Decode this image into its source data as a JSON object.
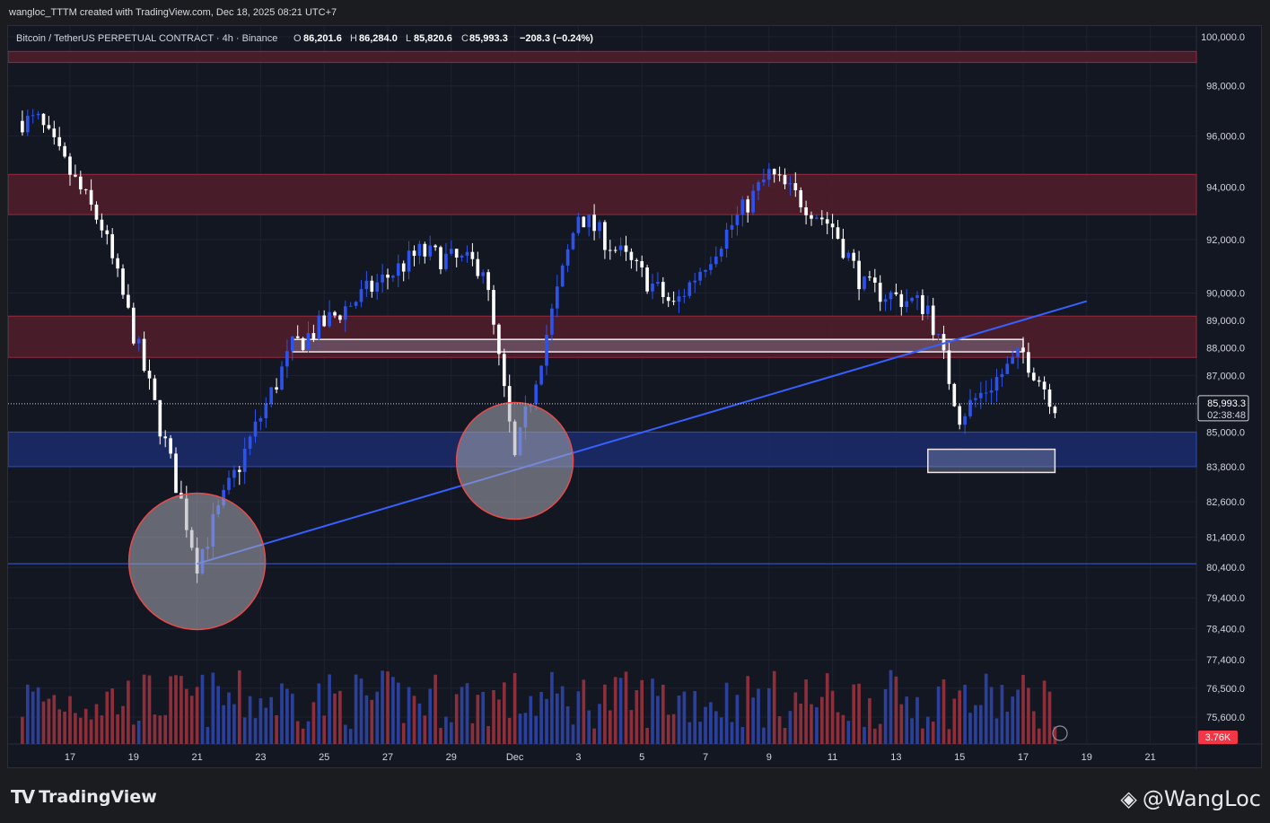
{
  "header": {
    "credit": "wangloc_TTTM created with TradingView.com, Dec 18, 2025 08:21 UTC+7"
  },
  "footer": {
    "brand": "TradingView",
    "author": "@WangLoc"
  },
  "colors": {
    "background": "#131722",
    "up_candle": "#2c52ef",
    "down_candle": "#ffffff",
    "volume_up": "#2b3f9c",
    "volume_down": "#8c2f3a",
    "resistance_zone": "#4d1d2a",
    "support_zone": "#1a2a66",
    "trendline": "#3660ff",
    "circle_stroke": "#e84b4b"
  },
  "chart_data": {
    "type": "candlestick",
    "symbol_label": "Bitcoin / TetherUS PERPETUAL CONTRACT · 4h · Binance",
    "ohlc_readout": {
      "O_label": "O",
      "O": "86,201.6",
      "H_label": "H",
      "H": "86,284.0",
      "L_label": "L",
      "L": "85,820.6",
      "C_label": "C",
      "C": "85,993.3",
      "change": "−208.3 (−0.24%)"
    },
    "price_axis_ticks": [
      "100,000.0",
      "98,000.0",
      "96,000.0",
      "94,000.0",
      "92,000.0",
      "90,000.0",
      "89,000.0",
      "88,000.0",
      "87,000.0",
      "85,000.0",
      "83,800.0",
      "82,600.0",
      "81,400.0",
      "80,400.0",
      "79,400.0",
      "78,400.0",
      "77,400.0",
      "76,500.0",
      "75,600.0"
    ],
    "time_axis_ticks": [
      "17",
      "19",
      "21",
      "23",
      "25",
      "27",
      "29",
      "Dec",
      "3",
      "5",
      "7",
      "9",
      "11",
      "13",
      "15",
      "17",
      "19",
      "21"
    ],
    "last_price": {
      "value": "85,993.3",
      "countdown": "02:38:48"
    },
    "volume_label": "3.76K",
    "scale": "log",
    "ylim": [
      75200,
      101000
    ],
    "zones": [
      {
        "kind": "resistance",
        "from": 98950,
        "to": 99400
      },
      {
        "kind": "resistance",
        "from": 92950,
        "to": 94500
      },
      {
        "kind": "resistance",
        "from": 87650,
        "to": 89150
      },
      {
        "kind": "support",
        "from": 83800,
        "to": 85000
      },
      {
        "kind": "box",
        "from": 87850,
        "to": 88300,
        "x_from": "Nov 24",
        "x_to": "Dec 17"
      },
      {
        "kind": "box",
        "from": 83600,
        "to": 84400,
        "x_from": "Dec 14",
        "x_to": "Dec 18"
      }
    ],
    "horizontal_line": 80520,
    "trendline": {
      "points": [
        [
          "Nov 21",
          80520
        ],
        [
          "Dec 19",
          89700
        ]
      ]
    },
    "circles": [
      {
        "center_date": "Nov 21",
        "center_price": 80600
      },
      {
        "center_date": "Dec 1",
        "center_price": 84000
      }
    ],
    "key_points": [
      {
        "date": "Nov 16",
        "price": 96600
      },
      {
        "date": "Nov 18",
        "price": 92500
      },
      {
        "date": "Nov 21",
        "price": 80600
      },
      {
        "date": "Nov 24",
        "price": 88000
      },
      {
        "date": "Nov 28",
        "price": 91500
      },
      {
        "date": "Nov 30",
        "price": 91000
      },
      {
        "date": "Dec 1",
        "price": 84000
      },
      {
        "date": "Dec 3",
        "price": 93000
      },
      {
        "date": "Dec 6",
        "price": 89500
      },
      {
        "date": "Dec 9",
        "price": 94500
      },
      {
        "date": "Dec 11",
        "price": 92500
      },
      {
        "date": "Dec 12",
        "price": 90200
      },
      {
        "date": "Dec 14",
        "price": 89500
      },
      {
        "date": "Dec 15",
        "price": 85600
      },
      {
        "date": "Dec 17",
        "price": 87800
      },
      {
        "date": "Dec 18",
        "price": 85993
      }
    ]
  }
}
